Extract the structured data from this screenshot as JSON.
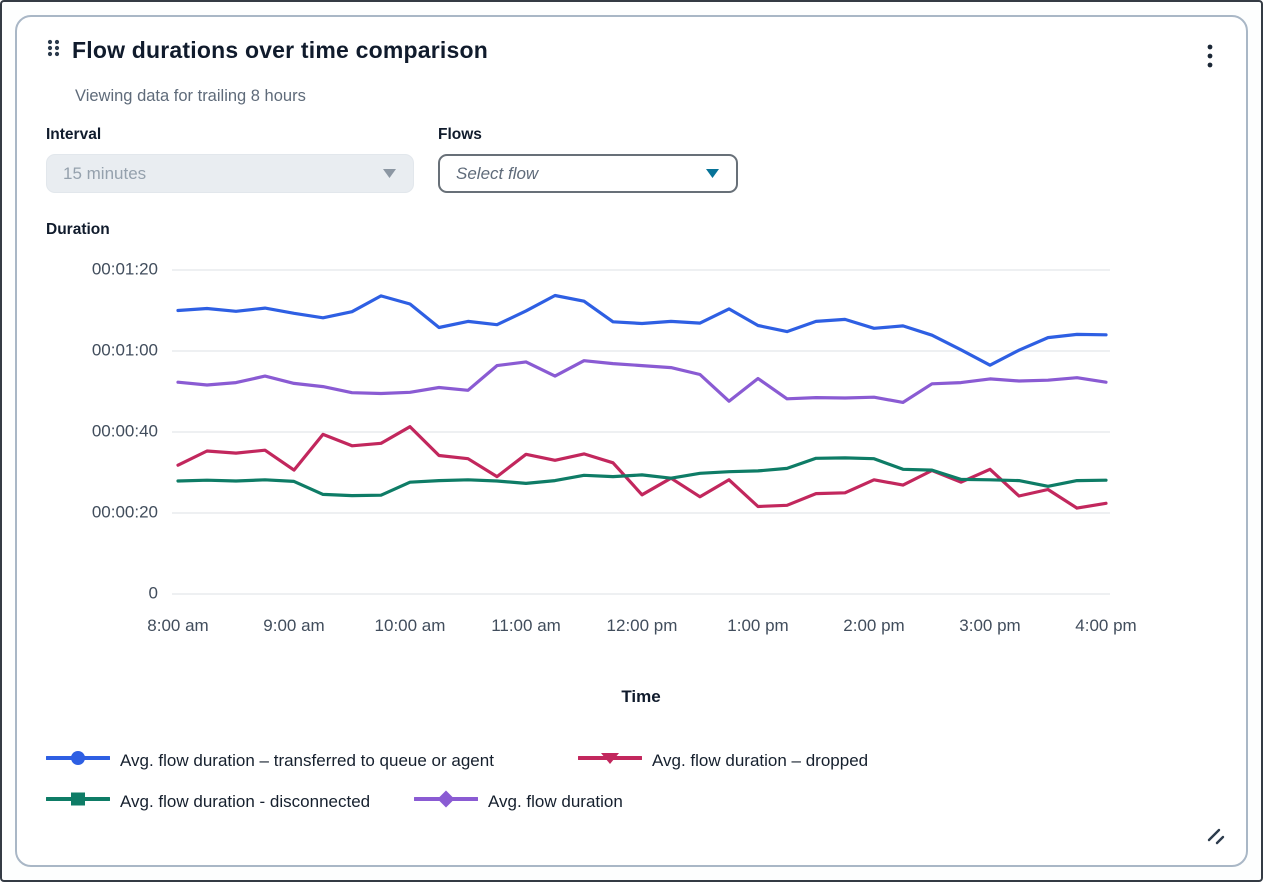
{
  "widget": {
    "title": "Flow durations over time comparison",
    "subtitle": "Viewing data for trailing 8 hours",
    "icons": {
      "drag_handle": "drag-handle-dots",
      "menu": "kebab-vertical-dots",
      "resize": "diagonal-resize-grip"
    },
    "accent_colors": {
      "text_dark": "#101b2c",
      "text_muted": "#5f6b7a",
      "tick_text": "#414d5c",
      "gridline": "#e9ebed",
      "card_border": "#a9b7c6",
      "flows_caret": "#077398",
      "disabled_caret": "#8c97a3"
    }
  },
  "controls": {
    "interval": {
      "label": "Interval",
      "value": "15 minutes",
      "state": "disabled"
    },
    "flows": {
      "label": "Flows",
      "placeholder": "Select flow",
      "state": "enabled"
    }
  },
  "chart_data": {
    "type": "line",
    "ylabel": "Duration",
    "xlabel": "Time",
    "x_start": "8:00 am",
    "x_interval_minutes": 15,
    "x_tick_labels": [
      "8:00 am",
      "9:00 am",
      "10:00 am",
      "11:00 am",
      "12:00 pm",
      "1:00 pm",
      "2:00 pm",
      "3:00 pm",
      "4:00 pm"
    ],
    "y_tick_labels": [
      "00:01:20",
      "00:01:00",
      "00:00:40",
      "00:00:20",
      "0"
    ],
    "y_tick_values_seconds": [
      80,
      60,
      40,
      20,
      0
    ],
    "ylim_seconds": [
      0,
      88
    ],
    "grid": "horizontal-only",
    "legend_position": "bottom",
    "legend_rows": [
      [
        0,
        1
      ],
      [
        2,
        3
      ]
    ],
    "series": [
      {
        "name": "Avg. flow duration – transferred to queue or agent",
        "color": "#2e5fe3",
        "marker": "circle",
        "values_seconds": [
          70.0,
          70.5,
          69.8,
          70.6,
          69.3,
          68.2,
          69.7,
          73.6,
          71.6,
          65.8,
          67.3,
          66.5,
          69.9,
          73.7,
          72.3,
          67.2,
          66.8,
          67.3,
          66.9,
          70.4,
          66.3,
          64.8,
          67.3,
          67.8,
          65.6,
          66.2,
          63.9,
          60.3,
          56.5,
          60.2,
          63.3,
          64.1,
          64.0
        ]
      },
      {
        "name": "Avg. flow duration – dropped",
        "color": "#c2275d",
        "marker": "triangle-down",
        "values_seconds": [
          31.8,
          35.3,
          34.8,
          35.5,
          30.6,
          39.4,
          36.6,
          37.2,
          41.3,
          34.2,
          33.4,
          29.0,
          34.5,
          33.0,
          34.6,
          32.4,
          24.5,
          28.6,
          24.0,
          28.2,
          21.6,
          21.9,
          24.8,
          25.0,
          28.2,
          26.9,
          30.5,
          27.6,
          30.8,
          24.2,
          25.8,
          21.2,
          22.4
        ]
      },
      {
        "name": "Avg. flow duration - disconnected",
        "color": "#0e7c66",
        "marker": "square",
        "values_seconds": [
          27.9,
          28.1,
          27.9,
          28.2,
          27.8,
          24.6,
          24.3,
          24.4,
          27.6,
          28.0,
          28.2,
          27.9,
          27.3,
          28.0,
          29.3,
          29.0,
          29.4,
          28.6,
          29.8,
          30.2,
          30.4,
          31.0,
          33.5,
          33.6,
          33.4,
          30.8,
          30.6,
          28.3,
          28.2,
          28.0,
          26.6,
          28.0,
          28.1
        ]
      },
      {
        "name": "Avg. flow duration",
        "color": "#8a5bd3",
        "marker": "diamond",
        "values_seconds": [
          52.3,
          51.6,
          52.2,
          53.8,
          52.0,
          51.2,
          49.7,
          49.5,
          49.8,
          51.0,
          50.3,
          56.4,
          57.3,
          53.8,
          57.6,
          56.9,
          56.4,
          55.9,
          54.2,
          47.6,
          53.2,
          48.2,
          48.5,
          48.4,
          48.6,
          47.3,
          51.9,
          52.2,
          53.1,
          52.6,
          52.8,
          53.4,
          52.3
        ]
      }
    ]
  }
}
